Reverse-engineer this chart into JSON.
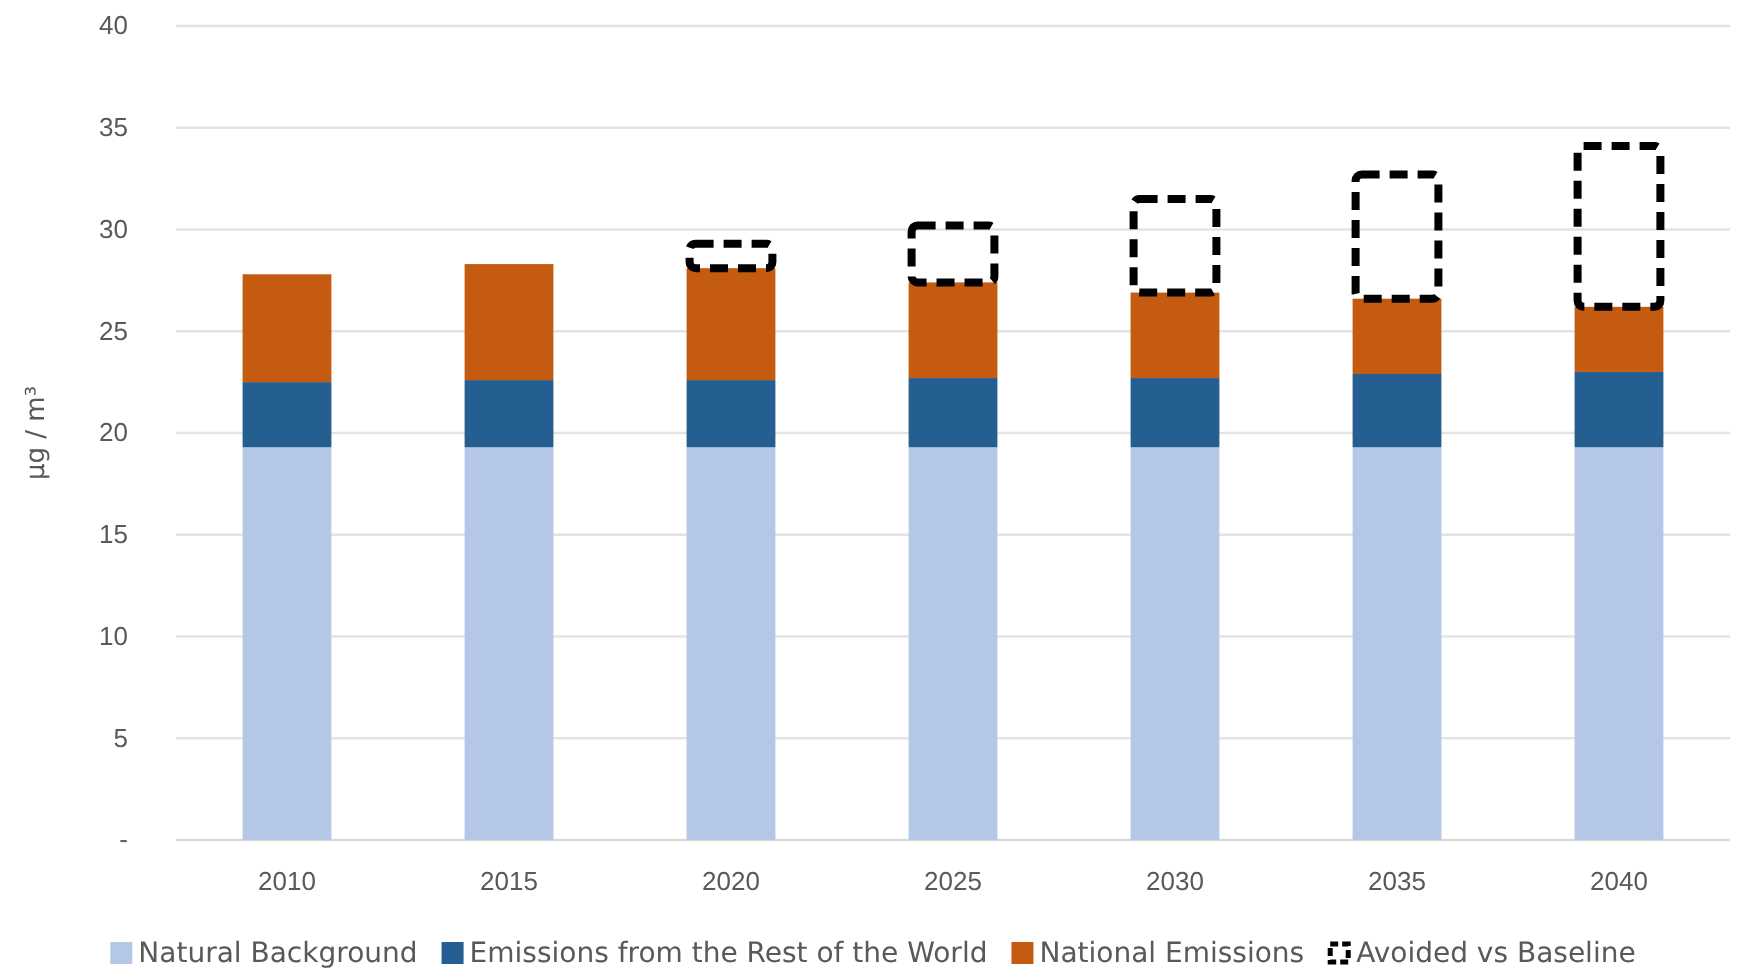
{
  "chart_data": {
    "type": "bar",
    "stacked": true,
    "categories": [
      "2010",
      "2015",
      "2020",
      "2025",
      "2030",
      "2035",
      "2040"
    ],
    "ylabel": "μg / m³",
    "ylim": [
      0,
      40
    ],
    "yticks": [
      {
        "value": 0,
        "label": "-"
      },
      5,
      10,
      15,
      20,
      25,
      30,
      35,
      40
    ],
    "grid": "y",
    "legend": "bottom",
    "series": [
      {
        "name": "Natural Background",
        "color": "#b4c7e7",
        "values": [
          19.3,
          19.3,
          19.3,
          19.3,
          19.3,
          19.3,
          19.3
        ]
      },
      {
        "name": "Emissions from the Rest of the World",
        "color": "#255e91",
        "values": [
          3.2,
          3.3,
          3.3,
          3.4,
          3.4,
          3.6,
          3.7
        ]
      },
      {
        "name": "National Emissions",
        "color": "#c55a11",
        "values": [
          5.3,
          5.7,
          5.5,
          4.7,
          4.2,
          3.7,
          3.2
        ]
      },
      {
        "name": "Avoided vs Baseline",
        "color": "#000000",
        "line_style": "dashed",
        "values": [
          null,
          null,
          1.2,
          2.8,
          4.6,
          6.1,
          7.9
        ]
      }
    ]
  }
}
